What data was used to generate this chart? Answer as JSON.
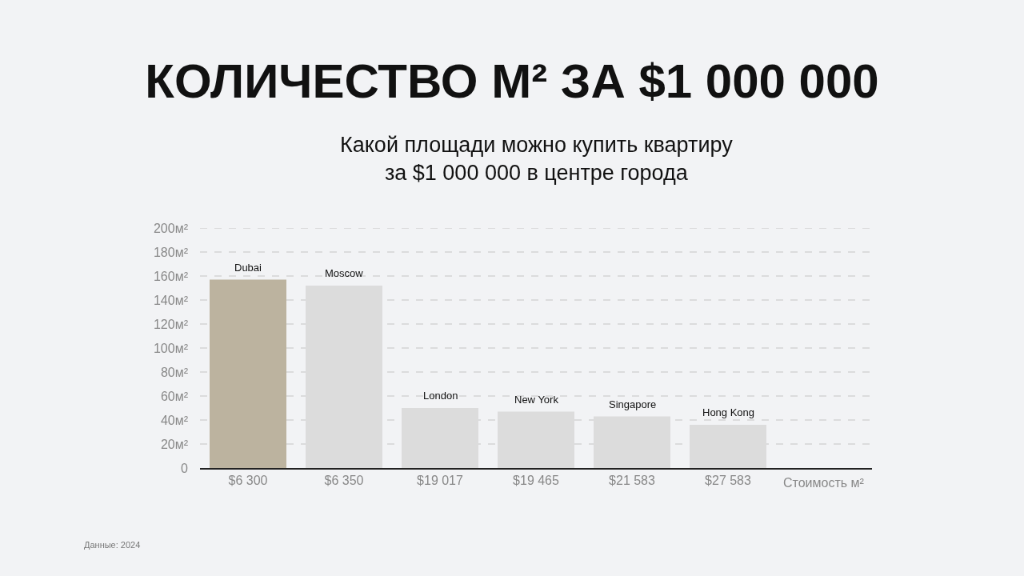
{
  "chart_data": {
    "type": "bar",
    "title": "КОЛИЧЕСТВО М² ЗА $1 000 000",
    "subtitle": "Какой площади можно купить квартиру\nза $1 000 000 в центре города",
    "xlabel": "Стоимость м²",
    "categories": [
      "$6 300",
      "$6 350",
      "$19 017",
      "$19 465",
      "$21 583",
      "$27 583"
    ],
    "values": [
      157,
      152,
      50,
      47,
      43,
      36
    ],
    "colors": [
      "#bcb39f",
      "#dcdcdc",
      "#dcdcdc",
      "#dcdcdc",
      "#dcdcdc",
      "#dcdcdc"
    ],
    "ylim": [
      0,
      200
    ],
    "yticks": [
      0,
      {
        "value": 20,
        "label": "20м²"
      },
      {
        "value": 40,
        "label": "40м²"
      },
      {
        "value": 60,
        "label": "60м²"
      },
      {
        "value": 80,
        "label": "80м²"
      },
      {
        "value": 100,
        "label": "100м²"
      },
      {
        "value": 120,
        "label": "120м²"
      },
      {
        "value": 140,
        "label": "140м²"
      },
      {
        "value": 160,
        "label": "160м²"
      },
      {
        "value": 180,
        "label": "180м²"
      },
      {
        "value": 200,
        "label": "200м²"
      }
    ],
    "grid": "y",
    "legend": false,
    "annotations": [
      {
        "text": "Dubai",
        "x": "$6 300",
        "y": 157
      },
      {
        "text": "Moscow",
        "x": "$6 350",
        "y": 152
      },
      {
        "text": "London",
        "x": "$19 017",
        "y": 50
      },
      {
        "text": "New York",
        "x": "$19 465",
        "y": 47
      },
      {
        "text": "Singapore",
        "x": "$21 583",
        "y": 43
      },
      {
        "text": "Hong Kong",
        "x": "$27 583",
        "y": 36
      },
      "Данные: 2024"
    ]
  }
}
